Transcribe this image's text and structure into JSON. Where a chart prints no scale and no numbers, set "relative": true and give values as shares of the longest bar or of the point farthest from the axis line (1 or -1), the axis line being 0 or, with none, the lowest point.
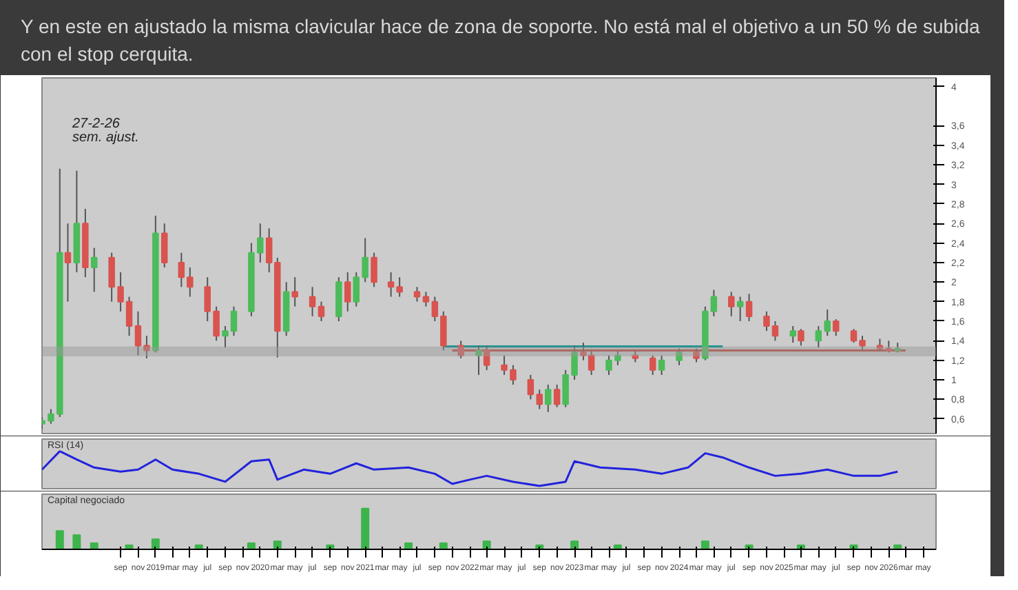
{
  "chart_data": [
    {
      "type": "candlestick",
      "title": "Y en este en ajustado la misma clavicular hace de zona de soporte. No está mal el objetivo a un 50 % de subida con el stop cerquita.",
      "annotations": [
        "27-2-26",
        "sem. ajust."
      ],
      "x": [
        "2017-12",
        "2018-01",
        "2018-02",
        "2018-03",
        "2018-04",
        "2018-05",
        "2018-06",
        "2018-08",
        "2018-09",
        "2018-10",
        "2018-11",
        "2018-12",
        "2019-01",
        "2019-02",
        "2019-04",
        "2019-05",
        "2019-07",
        "2019-08",
        "2019-09",
        "2019-10",
        "2019-12",
        "2020-01",
        "2020-02",
        "2020-03",
        "2020-04",
        "2020-05",
        "2020-07",
        "2020-08",
        "2020-10",
        "2020-11",
        "2020-12",
        "2021-01",
        "2021-02",
        "2021-04",
        "2021-05",
        "2021-07",
        "2021-08",
        "2021-09",
        "2021-10",
        "2021-12",
        "2022-02",
        "2022-03",
        "2022-05",
        "2022-06",
        "2022-08",
        "2022-09",
        "2022-10",
        "2022-11",
        "2022-12",
        "2023-01",
        "2023-02",
        "2023-03",
        "2023-05",
        "2023-06",
        "2023-08",
        "2023-10",
        "2023-11",
        "2024-01",
        "2024-03",
        "2024-04",
        "2024-05",
        "2024-07",
        "2024-08",
        "2024-09",
        "2024-11",
        "2024-12",
        "2025-02",
        "2025-03",
        "2025-05",
        "2025-06",
        "2025-07",
        "2025-09",
        "2025-10",
        "2025-12",
        "2026-01",
        "2026-02"
      ],
      "ohlc": [
        [
          0.55,
          0.62,
          0.5,
          0.58
        ],
        [
          0.58,
          0.7,
          0.55,
          0.65
        ],
        [
          0.65,
          3.16,
          0.62,
          2.3
        ],
        [
          2.3,
          2.6,
          1.8,
          2.2
        ],
        [
          2.2,
          3.14,
          2.1,
          2.6
        ],
        [
          2.6,
          2.75,
          2.05,
          2.15
        ],
        [
          2.15,
          2.35,
          1.9,
          2.25
        ],
        [
          2.25,
          2.3,
          1.8,
          1.95
        ],
        [
          1.95,
          2.1,
          1.7,
          1.8
        ],
        [
          1.8,
          1.85,
          1.45,
          1.55
        ],
        [
          1.55,
          1.7,
          1.25,
          1.35
        ],
        [
          1.35,
          1.45,
          1.22,
          1.3
        ],
        [
          1.3,
          2.68,
          1.28,
          2.5
        ],
        [
          2.5,
          2.6,
          2.15,
          2.2
        ],
        [
          2.2,
          2.3,
          1.95,
          2.05
        ],
        [
          2.05,
          2.15,
          1.85,
          1.95
        ],
        [
          1.95,
          2.05,
          1.6,
          1.7
        ],
        [
          1.7,
          1.75,
          1.4,
          1.45
        ],
        [
          1.45,
          1.55,
          1.33,
          1.5
        ],
        [
          1.5,
          1.75,
          1.45,
          1.7
        ],
        [
          1.7,
          2.4,
          1.65,
          2.3
        ],
        [
          2.3,
          2.6,
          2.2,
          2.45
        ],
        [
          2.45,
          2.55,
          2.1,
          2.2
        ],
        [
          2.2,
          2.25,
          1.23,
          1.5
        ],
        [
          1.5,
          2.0,
          1.45,
          1.9
        ],
        [
          1.9,
          2.05,
          1.75,
          1.85
        ],
        [
          1.85,
          1.95,
          1.65,
          1.75
        ],
        [
          1.75,
          1.8,
          1.6,
          1.65
        ],
        [
          1.65,
          2.05,
          1.6,
          2.0
        ],
        [
          2.0,
          2.1,
          1.7,
          1.8
        ],
        [
          1.8,
          2.1,
          1.75,
          2.05
        ],
        [
          2.05,
          2.45,
          2.0,
          2.25
        ],
        [
          2.25,
          2.3,
          1.95,
          2.0
        ],
        [
          2.0,
          2.1,
          1.85,
          1.95
        ],
        [
          1.95,
          2.05,
          1.85,
          1.9
        ],
        [
          1.9,
          1.95,
          1.8,
          1.85
        ],
        [
          1.85,
          1.9,
          1.75,
          1.8
        ],
        [
          1.8,
          1.85,
          1.6,
          1.65
        ],
        [
          1.65,
          1.7,
          1.3,
          1.35
        ],
        [
          1.35,
          1.4,
          1.22,
          1.25
        ],
        [
          1.25,
          1.35,
          1.05,
          1.3
        ],
        [
          1.3,
          1.35,
          1.1,
          1.15
        ],
        [
          1.15,
          1.25,
          1.05,
          1.1
        ],
        [
          1.1,
          1.15,
          0.95,
          1.0
        ],
        [
          1.0,
          1.05,
          0.8,
          0.85
        ],
        [
          0.85,
          0.9,
          0.7,
          0.75
        ],
        [
          0.75,
          0.95,
          0.67,
          0.9
        ],
        [
          0.9,
          0.95,
          0.72,
          0.75
        ],
        [
          0.75,
          1.1,
          0.72,
          1.05
        ],
        [
          1.05,
          1.35,
          1.0,
          1.28
        ],
        [
          1.28,
          1.38,
          1.2,
          1.25
        ],
        [
          1.25,
          1.3,
          1.05,
          1.1
        ],
        [
          1.1,
          1.25,
          1.05,
          1.2
        ],
        [
          1.2,
          1.3,
          1.15,
          1.25
        ],
        [
          1.25,
          1.3,
          1.18,
          1.22
        ],
        [
          1.22,
          1.25,
          1.05,
          1.1
        ],
        [
          1.1,
          1.25,
          1.05,
          1.2
        ],
        [
          1.2,
          1.32,
          1.15,
          1.28
        ],
        [
          1.28,
          1.32,
          1.18,
          1.22
        ],
        [
          1.22,
          1.75,
          1.2,
          1.7
        ],
        [
          1.7,
          1.92,
          1.65,
          1.85
        ],
        [
          1.85,
          1.9,
          1.65,
          1.75
        ],
        [
          1.75,
          1.85,
          1.6,
          1.8
        ],
        [
          1.8,
          1.88,
          1.6,
          1.65
        ],
        [
          1.65,
          1.7,
          1.5,
          1.55
        ],
        [
          1.55,
          1.6,
          1.4,
          1.45
        ],
        [
          1.45,
          1.55,
          1.38,
          1.5
        ],
        [
          1.5,
          1.52,
          1.35,
          1.4
        ],
        [
          1.4,
          1.55,
          1.33,
          1.5
        ],
        [
          1.5,
          1.72,
          1.45,
          1.6
        ],
        [
          1.6,
          1.62,
          1.45,
          1.5
        ],
        [
          1.5,
          1.52,
          1.38,
          1.4
        ],
        [
          1.4,
          1.45,
          1.3,
          1.35
        ],
        [
          1.35,
          1.42,
          1.29,
          1.32
        ],
        [
          1.32,
          1.4,
          1.28,
          1.3
        ],
        [
          1.3,
          1.38,
          1.28,
          1.32
        ]
      ],
      "series": [
        {
          "type": "line",
          "color": "#008b8b",
          "x": [
            "2021-10",
            "2024-06"
          ],
          "values": [
            1.34,
            1.34
          ]
        },
        {
          "type": "line",
          "color": "#c0392b",
          "x": [
            "2021-11",
            "2026-03"
          ],
          "values": [
            1.3,
            1.3
          ]
        }
      ],
      "bands": [
        {
          "axis": "y",
          "from": 1.24,
          "to": 1.34,
          "color": "#999999"
        }
      ],
      "xlim": [
        "2017-12-01",
        "2026-06-15"
      ],
      "ylim": [
        0.45,
        4.09
      ],
      "yticks": [
        {
          "value": 0.6,
          "label": "0,6"
        },
        {
          "value": 0.8,
          "label": "0,8"
        },
        1,
        {
          "value": 1.2,
          "label": "1,2"
        },
        {
          "value": 1.4,
          "label": "1,4"
        },
        {
          "value": 1.6,
          "label": "1,6"
        },
        {
          "value": 1.8,
          "label": "1,8"
        },
        2,
        {
          "value": 2.2,
          "label": "2,2"
        },
        {
          "value": 2.4,
          "label": "2,4"
        },
        {
          "value": 2.6,
          "label": "2,6"
        },
        {
          "value": 2.8,
          "label": "2,8"
        },
        3,
        {
          "value": 3.2,
          "label": "3,2"
        },
        {
          "value": 3.4,
          "label": "3,4"
        },
        {
          "value": 3.6,
          "label": "3,6"
        },
        4
      ],
      "tick_labels": "y",
      "grid": false
    },
    {
      "type": "line",
      "title": "RSI (14)",
      "relative": true,
      "xlim": [
        "2017-12-01",
        "2026-06-15"
      ],
      "tick_labels": false,
      "grid": false,
      "series": [
        {
          "color": "#2222dd",
          "x": [
            "2017-12",
            "2018-02",
            "2018-04",
            "2018-06",
            "2018-09",
            "2018-11",
            "2019-01",
            "2019-03",
            "2019-06",
            "2019-09",
            "2019-12",
            "2020-02",
            "2020-03",
            "2020-06",
            "2020-09",
            "2020-12",
            "2021-02",
            "2021-06",
            "2021-09",
            "2021-11",
            "2022-01",
            "2022-03",
            "2022-06",
            "2022-09",
            "2022-12",
            "2023-01",
            "2023-04",
            "2023-08",
            "2023-11",
            "2024-02",
            "2024-04",
            "2024-06",
            "2024-09",
            "2024-12",
            "2025-03",
            "2025-06",
            "2025-09",
            "2025-12",
            "2026-02"
          ],
          "values": [
            0.47,
            1.0,
            0.76,
            0.53,
            0.41,
            0.47,
            0.76,
            0.47,
            0.35,
            0.12,
            0.71,
            0.76,
            0.18,
            0.47,
            0.35,
            0.65,
            0.47,
            0.53,
            0.35,
            0.06,
            0.18,
            0.29,
            0.12,
            0,
            0.12,
            0.71,
            0.53,
            0.47,
            0.35,
            0.53,
            0.94,
            0.82,
            0.53,
            0.29,
            0.35,
            0.47,
            0.29,
            0.29,
            0.41
          ]
        }
      ]
    },
    {
      "type": "bar",
      "title": "Capital negociado",
      "relative": true,
      "xlim": [
        "2017-12-01",
        "2026-06-15"
      ],
      "tick_labels": "x",
      "grid": false,
      "x": [
        "2018-02",
        "2018-04",
        "2018-06",
        "2018-10",
        "2019-01",
        "2019-06",
        "2019-12",
        "2020-03",
        "2020-09",
        "2021-01",
        "2021-06",
        "2021-10",
        "2022-03",
        "2022-09",
        "2023-01",
        "2023-06",
        "2024-04",
        "2024-09",
        "2025-03",
        "2025-09",
        "2026-02"
      ],
      "values": [
        0.45,
        0.35,
        0.15,
        0.1,
        0.25,
        0.1,
        0.15,
        0.2,
        0.1,
        1.0,
        0.15,
        0.15,
        0.2,
        0.1,
        0.2,
        0.1,
        0.2,
        0.1,
        0.1,
        0.1,
        0.1
      ],
      "color": "#3cb44b",
      "xticks": [
        {
          "value": "2018-09",
          "label": "sep"
        },
        {
          "value": "2018-11",
          "label": "nov"
        },
        {
          "value": "2019-01",
          "label": "2019"
        },
        {
          "value": "2019-03",
          "label": "mar"
        },
        {
          "value": "2019-05",
          "label": "may"
        },
        {
          "value": "2019-07",
          "label": "jul"
        },
        {
          "value": "2019-09",
          "label": "sep"
        },
        {
          "value": "2019-11",
          "label": "nov"
        },
        {
          "value": "2020-01",
          "label": "2020"
        },
        {
          "value": "2020-03",
          "label": "mar"
        },
        {
          "value": "2020-05",
          "label": "may"
        },
        {
          "value": "2020-07",
          "label": "jul"
        },
        {
          "value": "2020-09",
          "label": "sep"
        },
        {
          "value": "2020-11",
          "label": "nov"
        },
        {
          "value": "2021-01",
          "label": "2021"
        },
        {
          "value": "2021-03",
          "label": "mar"
        },
        {
          "value": "2021-05",
          "label": "may"
        },
        {
          "value": "2021-07",
          "label": "jul"
        },
        {
          "value": "2021-09",
          "label": "sep"
        },
        {
          "value": "2021-11",
          "label": "nov"
        },
        {
          "value": "2022-01",
          "label": "2022"
        },
        {
          "value": "2022-03",
          "label": "mar"
        },
        {
          "value": "2022-05",
          "label": "may"
        },
        {
          "value": "2022-07",
          "label": "jul"
        },
        {
          "value": "2022-09",
          "label": "sep"
        },
        {
          "value": "2022-11",
          "label": "nov"
        },
        {
          "value": "2023-01",
          "label": "2023"
        },
        {
          "value": "2023-03",
          "label": "mar"
        },
        {
          "value": "2023-05",
          "label": "may"
        },
        {
          "value": "2023-07",
          "label": "jul"
        },
        {
          "value": "2023-09",
          "label": "sep"
        },
        {
          "value": "2023-11",
          "label": "nov"
        },
        {
          "value": "2024-01",
          "label": "2024"
        },
        {
          "value": "2024-03",
          "label": "mar"
        },
        {
          "value": "2024-05",
          "label": "may"
        },
        {
          "value": "2024-07",
          "label": "jul"
        },
        {
          "value": "2024-09",
          "label": "sep"
        },
        {
          "value": "2024-11",
          "label": "nov"
        },
        {
          "value": "2025-01",
          "label": "2025"
        },
        {
          "value": "2025-03",
          "label": "mar"
        },
        {
          "value": "2025-05",
          "label": "may"
        },
        {
          "value": "2025-07",
          "label": "jul"
        },
        {
          "value": "2025-09",
          "label": "sep"
        },
        {
          "value": "2025-11",
          "label": "nov"
        },
        {
          "value": "2026-01",
          "label": "2026"
        },
        {
          "value": "2026-03",
          "label": "mar"
        },
        {
          "value": "2026-05",
          "label": "may"
        }
      ]
    }
  ]
}
